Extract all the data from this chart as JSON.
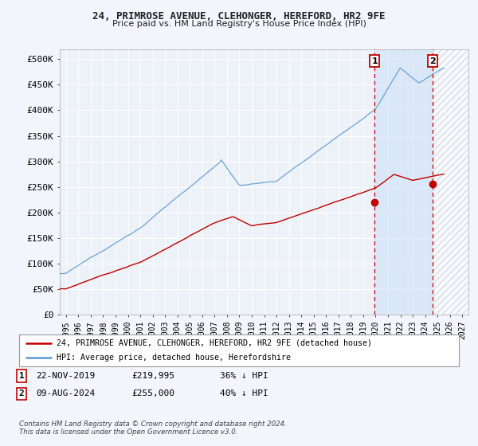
{
  "title": "24, PRIMROSE AVENUE, CLEHONGER, HEREFORD, HR2 9FE",
  "subtitle": "Price paid vs. HM Land Registry's House Price Index (HPI)",
  "yticks": [
    0,
    50000,
    100000,
    150000,
    200000,
    250000,
    300000,
    350000,
    400000,
    450000,
    500000
  ],
  "ytick_labels": [
    "£0",
    "£50K",
    "£100K",
    "£150K",
    "£200K",
    "£250K",
    "£300K",
    "£350K",
    "£400K",
    "£450K",
    "£500K"
  ],
  "hpi_color": "#5b9bd5",
  "price_color": "#c00000",
  "bg_color": "#f2f5fb",
  "plot_bg": "#edf1f8",
  "grid_color": "#ffffff",
  "sale1_date": 2019.92,
  "sale1_price": 219995,
  "sale2_date": 2024.6,
  "sale2_price": 255000,
  "legend_line1": "24, PRIMROSE AVENUE, CLEHONGER, HEREFORD, HR2 9FE (detached house)",
  "legend_line2": "HPI: Average price, detached house, Herefordshire",
  "copyright": "Contains HM Land Registry data © Crown copyright and database right 2024.\nThis data is licensed under the Open Government Licence v3.0.",
  "xmin": 1994.5,
  "xmax": 2027.5,
  "ymin": 0,
  "ymax": 520000,
  "xtick_years": [
    1995,
    1996,
    1997,
    1998,
    1999,
    2000,
    2001,
    2002,
    2003,
    2004,
    2005,
    2006,
    2007,
    2008,
    2009,
    2010,
    2011,
    2012,
    2013,
    2014,
    2015,
    2016,
    2017,
    2018,
    2019,
    2020,
    2021,
    2022,
    2023,
    2024,
    2025,
    2026,
    2027
  ]
}
